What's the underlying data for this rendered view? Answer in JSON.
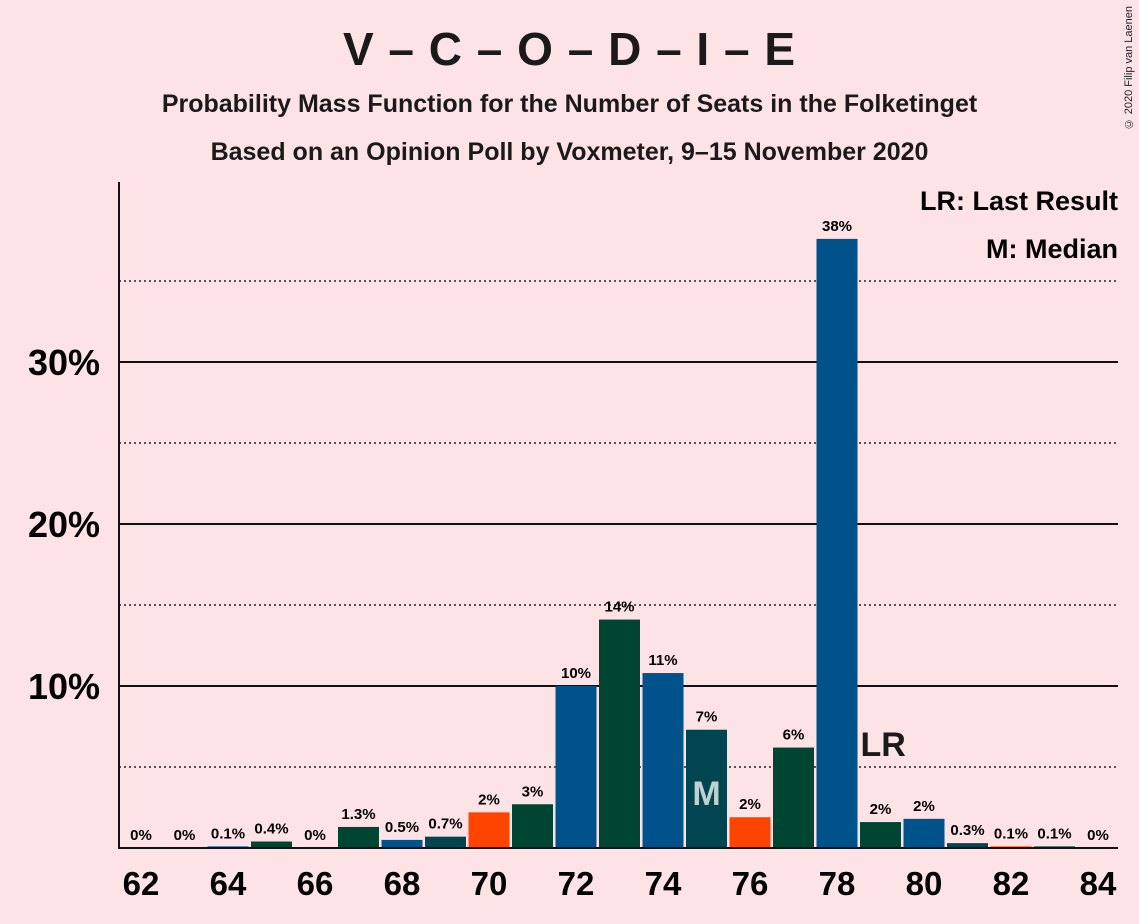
{
  "title": "V – C – O – D – I – E",
  "subtitle": "Probability Mass Function for the Number of Seats in the Folketinget",
  "subtitle2": "Based on an Opinion Poll by Voxmeter, 9–15 November 2020",
  "copyright": "© 2020 Filip van Laenen",
  "legend": {
    "last_result": "LR: Last Result",
    "median": "M: Median"
  },
  "colors": {
    "background": "#FDE2E6",
    "blue": "#00538A",
    "dark_green": "#004531",
    "dark_teal": "#004550",
    "orange": "#FF4300"
  },
  "chart_data": {
    "type": "bar",
    "xlabel": "",
    "ylabel": "",
    "ylim": [
      0,
      41
    ],
    "yticks": [
      10,
      20,
      30
    ],
    "ytick_labels": [
      "10%",
      "20%",
      "30%"
    ],
    "dotted_gridlines": [
      5,
      15,
      25,
      35
    ],
    "xticks": [
      62,
      64,
      66,
      68,
      70,
      72,
      74,
      76,
      78,
      80,
      82,
      84
    ],
    "legend_position": "top-right",
    "median": 75,
    "last_result": 79,
    "median_marker": "M",
    "last_result_marker": "LR",
    "bars": [
      {
        "seats": 62,
        "value": 0,
        "label": "0%",
        "color": "#004531"
      },
      {
        "seats": 63,
        "value": 0,
        "label": "0%",
        "color": "#00538A"
      },
      {
        "seats": 64,
        "value": 0.1,
        "label": "0.1%",
        "color": "#00538A"
      },
      {
        "seats": 65,
        "value": 0.4,
        "label": "0.4%",
        "color": "#004531"
      },
      {
        "seats": 66,
        "value": 0,
        "label": "0%",
        "color": "#00538A"
      },
      {
        "seats": 67,
        "value": 1.3,
        "label": "1.3%",
        "color": "#004531"
      },
      {
        "seats": 68,
        "value": 0.5,
        "label": "0.5%",
        "color": "#00538A"
      },
      {
        "seats": 69,
        "value": 0.7,
        "label": "0.7%",
        "color": "#004550"
      },
      {
        "seats": 70,
        "value": 2.2,
        "label": "2%",
        "color": "#FF4300"
      },
      {
        "seats": 71,
        "value": 2.7,
        "label": "3%",
        "color": "#004531"
      },
      {
        "seats": 72,
        "value": 10,
        "label": "10%",
        "color": "#00538A"
      },
      {
        "seats": 73,
        "value": 14.1,
        "label": "14%",
        "color": "#004531"
      },
      {
        "seats": 74,
        "value": 10.8,
        "label": "11%",
        "color": "#00538A"
      },
      {
        "seats": 75,
        "value": 7.3,
        "label": "7%",
        "color": "#004550"
      },
      {
        "seats": 76,
        "value": 1.9,
        "label": "2%",
        "color": "#FF4300"
      },
      {
        "seats": 77,
        "value": 6.2,
        "label": "6%",
        "color": "#004531"
      },
      {
        "seats": 78,
        "value": 37.6,
        "label": "38%",
        "color": "#00538A"
      },
      {
        "seats": 79,
        "value": 1.6,
        "label": "2%",
        "color": "#004531"
      },
      {
        "seats": 80,
        "value": 1.8,
        "label": "2%",
        "color": "#00538A"
      },
      {
        "seats": 81,
        "value": 0.3,
        "label": "0.3%",
        "color": "#004550"
      },
      {
        "seats": 82,
        "value": 0.1,
        "label": "0.1%",
        "color": "#FF4300"
      },
      {
        "seats": 83,
        "value": 0.1,
        "label": "0.1%",
        "color": "#004531"
      },
      {
        "seats": 84,
        "value": 0,
        "label": "0%",
        "color": "#00538A"
      }
    ]
  }
}
